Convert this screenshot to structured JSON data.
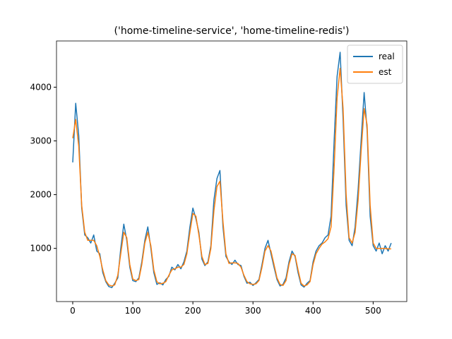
{
  "chart_data": {
    "type": "line",
    "title": "('home-timeline-service', 'home-timeline-redis')",
    "x": [
      0,
      5,
      10,
      15,
      20,
      25,
      30,
      35,
      40,
      45,
      50,
      55,
      60,
      65,
      70,
      75,
      80,
      85,
      90,
      95,
      100,
      105,
      110,
      115,
      120,
      125,
      130,
      135,
      140,
      145,
      150,
      155,
      160,
      165,
      170,
      175,
      180,
      185,
      190,
      195,
      200,
      205,
      210,
      215,
      220,
      225,
      230,
      235,
      240,
      245,
      250,
      255,
      260,
      265,
      270,
      275,
      280,
      285,
      290,
      295,
      300,
      305,
      310,
      315,
      320,
      325,
      330,
      335,
      340,
      345,
      350,
      355,
      360,
      365,
      370,
      375,
      380,
      385,
      390,
      395,
      400,
      405,
      410,
      415,
      420,
      425,
      430,
      435,
      440,
      445,
      450,
      455,
      460,
      465,
      470,
      475,
      480,
      485,
      490,
      495,
      500,
      505,
      510,
      515,
      520,
      525,
      530
    ],
    "series": [
      {
        "name": "real",
        "color": "#1f77b4",
        "values": [
          2600,
          3700,
          3100,
          1750,
          1250,
          1200,
          1100,
          1250,
          950,
          900,
          550,
          380,
          290,
          270,
          350,
          450,
          1000,
          1450,
          1150,
          650,
          400,
          380,
          450,
          750,
          1150,
          1400,
          1000,
          550,
          330,
          360,
          320,
          420,
          480,
          650,
          600,
          700,
          620,
          750,
          950,
          1400,
          1750,
          1550,
          1300,
          800,
          680,
          750,
          1050,
          1900,
          2300,
          2450,
          1400,
          850,
          750,
          700,
          780,
          700,
          680,
          480,
          350,
          370,
          310,
          360,
          420,
          700,
          1000,
          1150,
          900,
          650,
          420,
          300,
          330,
          450,
          750,
          950,
          850,
          550,
          320,
          280,
          350,
          400,
          750,
          950,
          1050,
          1100,
          1200,
          1250,
          1600,
          3000,
          4200,
          4650,
          3400,
          1800,
          1150,
          1050,
          1400,
          2100,
          3000,
          3900,
          3200,
          1600,
          1050,
          950,
          1100,
          900,
          1050,
          950,
          1100
        ]
      },
      {
        "name": "est",
        "color": "#ff7f0e",
        "values": [
          3050,
          3400,
          2900,
          1800,
          1300,
          1150,
          1150,
          1150,
          1050,
          850,
          600,
          400,
          320,
          300,
          320,
          500,
          900,
          1300,
          1200,
          700,
          430,
          400,
          420,
          700,
          1100,
          1300,
          1050,
          600,
          380,
          340,
          350,
          380,
          500,
          600,
          620,
          650,
          650,
          700,
          900,
          1300,
          1650,
          1600,
          1250,
          850,
          700,
          720,
          1000,
          1700,
          2150,
          2250,
          1500,
          900,
          720,
          730,
          730,
          720,
          650,
          500,
          380,
          340,
          330,
          340,
          400,
          650,
          950,
          1050,
          950,
          700,
          450,
          330,
          310,
          400,
          700,
          900,
          870,
          600,
          350,
          300,
          320,
          380,
          700,
          900,
          1000,
          1080,
          1120,
          1180,
          1400,
          2500,
          3800,
          4350,
          3600,
          2000,
          1200,
          1100,
          1300,
          1900,
          2800,
          3600,
          3300,
          1800,
          1100,
          1000,
          1000,
          1000,
          1000,
          990,
          990
        ]
      }
    ],
    "xlim": [
      -27,
      556
    ],
    "ylim": [
      10,
      4860
    ],
    "xticks": [
      0,
      100,
      200,
      300,
      400,
      500
    ],
    "yticks": [
      1000,
      2000,
      3000,
      4000
    ],
    "legend": "upper right",
    "grid": false
  }
}
